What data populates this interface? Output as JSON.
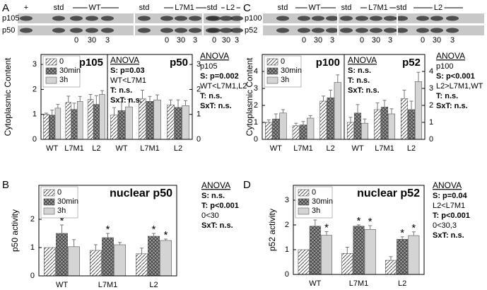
{
  "panels": [
    {
      "label": "A",
      "blot": {
        "header": [
          "+",
          "std",
          "WT",
          "std",
          "L7M1",
          "std",
          "L2"
        ],
        "rows": [
          "p105",
          "p50"
        ],
        "lanes": [
          [
            "0",
            "30",
            "3"
          ],
          [
            "0",
            "30",
            "3"
          ],
          [
            "0",
            "30",
            "3"
          ]
        ]
      }
    },
    {
      "label": "B"
    },
    {
      "label": "C",
      "blot": {
        "header": [
          "std",
          "WT",
          "std",
          "L7M1",
          "std",
          "L2"
        ],
        "rows": [
          "p100",
          "p52"
        ],
        "lanes": [
          [
            "0",
            "30",
            "3"
          ],
          [
            "0",
            "30",
            "3"
          ],
          [
            "0",
            "30",
            "3"
          ]
        ]
      }
    },
    {
      "label": "D"
    }
  ],
  "chart_data": [
    {
      "type": "bar",
      "title": "p105",
      "ylabel": "Cytoplasmic Content",
      "categories": [
        "WT",
        "L7M1",
        "L2"
      ],
      "ylim": [
        0,
        3.4
      ],
      "yticks": [
        0,
        1,
        2,
        3
      ],
      "legend": "upper left",
      "series": [
        {
          "name": "0",
          "color": "#ffffff",
          "pattern": "diagonal",
          "values": [
            1.0,
            1.48,
            1.6
          ],
          "errors": [
            0.05,
            0.25,
            0.2
          ]
        },
        {
          "name": "30min",
          "color": "#9a9a9a",
          "pattern": "crosshatch",
          "values": [
            0.97,
            1.2,
            1.4
          ],
          "errors": [
            0.2,
            0.25,
            0.35
          ]
        },
        {
          "name": "3h",
          "color": "#d4d4d4",
          "pattern": "solid",
          "values": [
            1.25,
            1.52,
            1.8
          ],
          "errors": [
            0.15,
            0.2,
            0.15
          ]
        }
      ],
      "annotation": [
        {
          "text": "ANOVA",
          "style": "underline"
        },
        {
          "text": "p105"
        },
        {
          "text": "S: p=0.002",
          "style": "bold"
        },
        {
          "text": "WT<L7M1,L2"
        },
        {
          "text": "T: n.s.",
          "style": "bold"
        },
        {
          "text": "SxT: n.s.",
          "style": "bold"
        }
      ]
    },
    {
      "type": "bar",
      "title": "p50",
      "categories": [
        "WT",
        "L7M1",
        "L2"
      ],
      "ylim": [
        0,
        3.4
      ],
      "yticks": [
        0,
        1,
        2,
        3
      ],
      "series": [
        {
          "color": "#ffffff",
          "pattern": "diagonal",
          "values": [
            0.97,
            1.62,
            1.38
          ],
          "errors": [
            0.3,
            0.35,
            0.2
          ]
        },
        {
          "color": "#9a9a9a",
          "pattern": "crosshatch",
          "values": [
            1.15,
            1.52,
            1.28
          ],
          "errors": [
            0.35,
            0.2,
            0.3
          ]
        },
        {
          "color": "#d4d4d4",
          "pattern": "solid",
          "values": [
            1.3,
            1.58,
            1.35
          ],
          "errors": [
            0.3,
            0.2,
            0.2
          ]
        }
      ],
      "annotation": [
        {
          "text": "ANOVA",
          "style": "underline"
        },
        {
          "text": "S: p=0.03",
          "style": "bold"
        },
        {
          "text": "WT<L7M1"
        },
        {
          "text": "T: n.s.",
          "style": "bold"
        },
        {
          "text": "SxT: n.s.",
          "style": "bold"
        }
      ]
    },
    {
      "type": "bar",
      "title": "p100",
      "ylabel": "Cytoplasmic Content",
      "categories": [
        "WT",
        "L7M1",
        "L2"
      ],
      "ylim": [
        0,
        5
      ],
      "yticks": [
        0,
        1,
        2,
        3,
        4
      ],
      "legend": "upper left",
      "series": [
        {
          "name": "0",
          "color": "#ffffff",
          "pattern": "diagonal",
          "values": [
            1.0,
            0.8,
            2.25
          ],
          "errors": [
            0.15,
            0.15,
            0.3
          ]
        },
        {
          "name": "30min",
          "color": "#9a9a9a",
          "pattern": "crosshatch",
          "values": [
            1.2,
            0.85,
            2.45
          ],
          "errors": [
            0.3,
            0.2,
            0.45
          ]
        },
        {
          "name": "3h",
          "color": "#d4d4d4",
          "pattern": "solid",
          "values": [
            1.55,
            1.25,
            3.35
          ],
          "errors": [
            0.2,
            0.15,
            0.45
          ]
        }
      ],
      "annotation": [
        {
          "text": "ANOVA",
          "style": "underline"
        },
        {
          "text": "p100"
        },
        {
          "text": "S: p<0.001",
          "style": "bold"
        },
        {
          "text": "L2>L7M1,WT"
        },
        {
          "text": "T: n.s.",
          "style": "bold"
        },
        {
          "text": "SxT: n.s.",
          "style": "bold"
        }
      ]
    },
    {
      "type": "bar",
      "title": "p52",
      "categories": [
        "WT",
        "L7M1",
        "L2"
      ],
      "ylim": [
        0,
        5
      ],
      "yticks": [
        0,
        1,
        2,
        3,
        4
      ],
      "series": [
        {
          "color": "#ffffff",
          "pattern": "diagonal",
          "values": [
            1.0,
            1.75,
            2.4
          ],
          "errors": [
            0.3,
            0.4,
            0.5
          ]
        },
        {
          "color": "#9a9a9a",
          "pattern": "crosshatch",
          "values": [
            1.55,
            1.9,
            1.75
          ],
          "errors": [
            0.5,
            0.4,
            0.5
          ]
        },
        {
          "color": "#d4d4d4",
          "pattern": "solid",
          "values": [
            0.95,
            1.5,
            3.4
          ],
          "errors": [
            0.25,
            0.3,
            0.55
          ]
        }
      ],
      "annotation": [
        {
          "text": "ANOVA",
          "style": "underline"
        },
        {
          "text": "S: n.s.",
          "style": "bold"
        },
        {
          "text": "T: n.s.",
          "style": "bold"
        },
        {
          "text": "SxT:  n.s.",
          "style": "bold"
        }
      ]
    },
    {
      "type": "bar",
      "title": "nuclear p50",
      "ylabel": "p50 activity",
      "categories": [
        "WT",
        "L7M1",
        "L2"
      ],
      "ylim": [
        0,
        3.2
      ],
      "yticks": [
        0,
        1,
        2
      ],
      "legend": "upper left",
      "sig_marker": "*",
      "series": [
        {
          "name": "0",
          "color": "#ffffff",
          "pattern": "diagonal",
          "values": [
            1.0,
            0.9,
            0.78
          ],
          "errors": [
            null,
            0.2,
            0.2
          ],
          "significant": [
            false,
            false,
            false
          ]
        },
        {
          "name": "30min",
          "color": "#9a9a9a",
          "pattern": "crosshatch",
          "values": [
            1.5,
            1.35,
            1.4
          ],
          "errors": [
            0.3,
            0.15,
            0.1
          ],
          "significant": [
            true,
            true,
            true
          ]
        },
        {
          "name": "3h",
          "color": "#d4d4d4",
          "pattern": "solid",
          "values": [
            1.03,
            1.1,
            1.25
          ],
          "errors": [
            0.25,
            0.08,
            0.05
          ],
          "significant": [
            false,
            false,
            true
          ]
        }
      ],
      "annotation": [
        {
          "text": "ANOVA",
          "style": "underline"
        },
        {
          "text": "S: n.s.",
          "style": "bold"
        },
        {
          "text": "T: p<0.001",
          "style": "bold"
        },
        {
          "text": "0<30"
        },
        {
          "text": "SxT: n.s.",
          "style": "bold"
        }
      ]
    },
    {
      "type": "bar",
      "title": "nuclear p52",
      "ylabel": "p52 activity",
      "categories": [
        "WT",
        "L7M1",
        "L2"
      ],
      "ylim": [
        0,
        3.6
      ],
      "yticks": [
        0,
        1,
        2,
        3
      ],
      "legend": "upper left",
      "sig_marker": "*",
      "series": [
        {
          "name": "0",
          "color": "#ffffff",
          "pattern": "diagonal",
          "values": [
            1.0,
            0.85,
            0.57
          ],
          "errors": [
            null,
            0.25,
            0.15
          ],
          "significant": [
            false,
            false,
            false
          ]
        },
        {
          "name": "30min",
          "color": "#9a9a9a",
          "pattern": "crosshatch",
          "values": [
            1.95,
            1.95,
            1.42
          ],
          "errors": [
            0.25,
            0.05,
            0.1
          ],
          "significant": [
            true,
            true,
            true
          ]
        },
        {
          "name": "3h",
          "color": "#d4d4d4",
          "pattern": "solid",
          "values": [
            1.58,
            1.82,
            1.57
          ],
          "errors": [
            0.15,
            0.15,
            0.15
          ],
          "significant": [
            true,
            true,
            true
          ]
        }
      ],
      "annotation": [
        {
          "text": "ANOVA",
          "style": "underline"
        },
        {
          "text": "S: p=0.04",
          "style": "bold"
        },
        {
          "text": "L2<L7M1"
        },
        {
          "text": "T: p<0.001",
          "style": "bold"
        },
        {
          "text": "0<30,3"
        },
        {
          "text": "SxT:  n.s.",
          "style": "bold"
        }
      ]
    }
  ]
}
